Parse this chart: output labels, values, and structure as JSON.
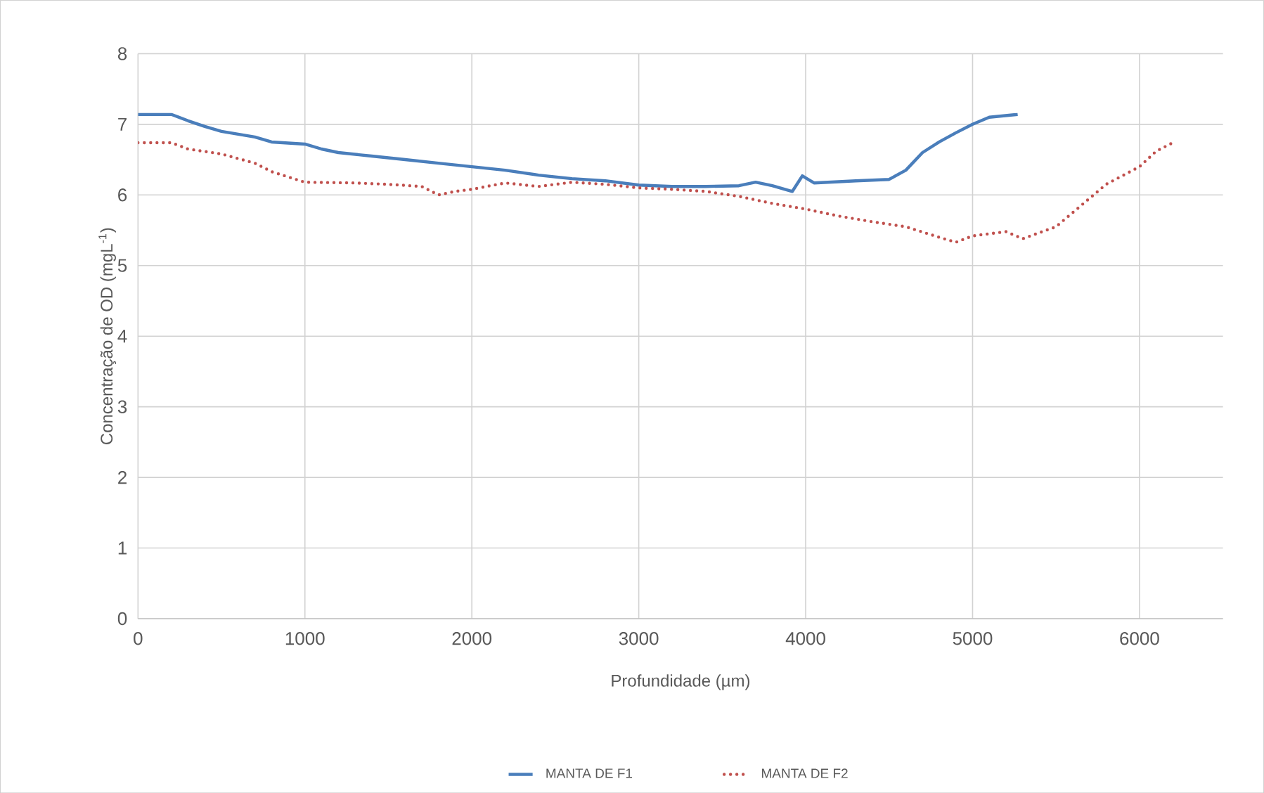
{
  "chart_data": {
    "type": "line",
    "xlabel": "Profundidade   (µm)",
    "ylabel": "Concentração de OD  (mgL$^{-1}$)",
    "xlim": [
      0,
      6500
    ],
    "xticks": [
      0,
      1000,
      2000,
      3000,
      4000,
      5000,
      6000
    ],
    "ylim": [
      0,
      8
    ],
    "yticks": [
      0,
      1,
      2,
      3,
      4,
      5,
      6,
      7,
      8
    ],
    "grid": true,
    "legend": "bottom",
    "series": [
      {
        "name": "MANTA DE F1",
        "color": "#4a7ebb",
        "line_style": "solid",
        "x": [
          0,
          200,
          300,
          400,
          500,
          700,
          800,
          1000,
          1100,
          1200,
          1400,
          1600,
          1800,
          2000,
          2200,
          2400,
          2600,
          2800,
          3000,
          3200,
          3400,
          3600,
          3700,
          3800,
          3920,
          3980,
          4050,
          4300,
          4500,
          4600,
          4700,
          4800,
          4900,
          5000,
          5100,
          5270
        ],
        "values": [
          7.14,
          7.14,
          7.05,
          6.97,
          6.9,
          6.82,
          6.75,
          6.72,
          6.65,
          6.6,
          6.55,
          6.5,
          6.45,
          6.4,
          6.35,
          6.28,
          6.23,
          6.2,
          6.14,
          6.12,
          6.12,
          6.13,
          6.18,
          6.13,
          6.05,
          6.27,
          6.17,
          6.2,
          6.22,
          6.35,
          6.6,
          6.75,
          6.88,
          7.0,
          7.1,
          7.14
        ]
      },
      {
        "name": "MANTA DE F2",
        "color": "#c0504d",
        "line_style": "dotted",
        "x": [
          0,
          200,
          300,
          500,
          700,
          800,
          1000,
          1300,
          1500,
          1700,
          1800,
          1900,
          2000,
          2200,
          2400,
          2600,
          2800,
          3000,
          3200,
          3400,
          3600,
          3800,
          4000,
          4200,
          4400,
          4600,
          4800,
          4900,
          5000,
          5200,
          5300,
          5500,
          5600,
          5700,
          5800,
          6000,
          6100,
          6200
        ],
        "values": [
          6.74,
          6.74,
          6.65,
          6.58,
          6.45,
          6.33,
          6.18,
          6.17,
          6.15,
          6.12,
          6.0,
          6.05,
          6.08,
          6.17,
          6.12,
          6.18,
          6.15,
          6.1,
          6.08,
          6.05,
          5.98,
          5.88,
          5.8,
          5.7,
          5.62,
          5.55,
          5.4,
          5.33,
          5.42,
          5.48,
          5.38,
          5.55,
          5.75,
          5.95,
          6.15,
          6.4,
          6.62,
          6.74
        ]
      }
    ]
  }
}
